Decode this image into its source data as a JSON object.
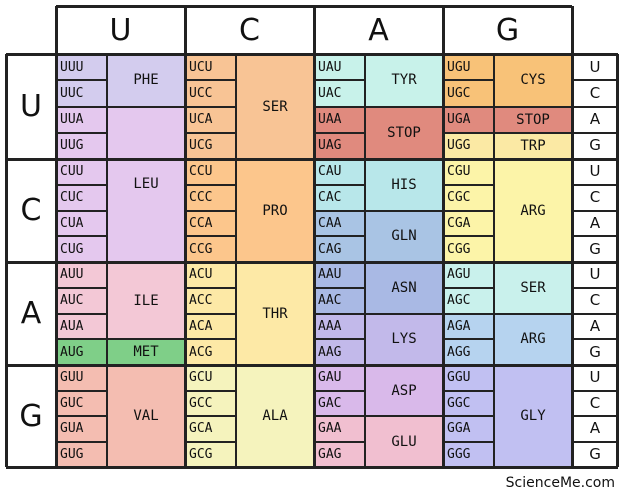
{
  "header": {
    "u": "U",
    "c": "C",
    "a": "A",
    "g": "G"
  },
  "rows": {
    "u": "U",
    "c": "C",
    "a": "A",
    "g": "G"
  },
  "third": [
    "U",
    "C",
    "A",
    "G"
  ],
  "codons": {
    "UUU": "UUU",
    "UUC": "UUC",
    "UUA": "UUA",
    "UUG": "UUG",
    "CUU": "CUU",
    "CUC": "CUC",
    "CUA": "CUA",
    "CUG": "CUG",
    "AUU": "AUU",
    "AUC": "AUC",
    "AUA": "AUA",
    "AUG": "AUG",
    "GUU": "GUU",
    "GUC": "GUC",
    "GUA": "GUA",
    "GUG": "GUG",
    "UCU": "UCU",
    "UCC": "UCC",
    "UCA": "UCA",
    "UCG": "UCG",
    "CCU": "CCU",
    "CCC": "CCC",
    "CCA": "CCA",
    "CCG": "CCG",
    "ACU": "ACU",
    "ACC": "ACC",
    "ACA": "ACA",
    "ACG": "ACG",
    "GCU": "GCU",
    "GCC": "GCC",
    "GCA": "GCA",
    "GCG": "GCG",
    "UAU": "UAU",
    "UAC": "UAC",
    "UAA": "UAA",
    "UAG": "UAG",
    "CAU": "CAU",
    "CAC": "CAC",
    "CAA": "CAA",
    "CAG": "CAG",
    "AAU": "AAU",
    "AAC": "AAC",
    "AAA": "AAA",
    "AAG": "AAG",
    "GAU": "GAU",
    "GAC": "GAC",
    "GAA": "GAA",
    "GAG": "GAG",
    "UGU": "UGU",
    "UGC": "UGC",
    "UGA": "UGA",
    "UGG": "UGG",
    "CGU": "CGU",
    "CGC": "CGC",
    "CGA": "CGA",
    "CGG": "CGG",
    "AGU": "AGU",
    "AGC": "AGC",
    "AGA": "AGA",
    "AGG": "AGG",
    "GGU": "GGU",
    "GGC": "GGC",
    "GGA": "GGA",
    "GGG": "GGG"
  },
  "amino": {
    "phe": "PHE",
    "leu": "LEU",
    "ile": "ILE",
    "met": "MET",
    "val": "VAL",
    "ser": "SER",
    "pro": "PRO",
    "thr": "THR",
    "ala": "ALA",
    "tyr": "TYR",
    "stop": "STOP",
    "his": "HIS",
    "gln": "GLN",
    "asn": "ASN",
    "lys": "LYS",
    "asp": "ASP",
    "glu": "GLU",
    "cys": "CYS",
    "trp": "TRP",
    "arg": "ARG",
    "ser2": "SER",
    "arg2": "ARG",
    "gly": "GLY"
  },
  "colors": {
    "phe": "#d3ccee",
    "leu": "#e4c8ee",
    "ile": "#f3c8d6",
    "met": "#7fcf88",
    "val": "#f4bdb1",
    "ser": "#f8c495",
    "pro": "#fcc68c",
    "thr": "#fde9a6",
    "ala": "#f5f3bd",
    "tyr": "#c8f2ea",
    "stop": "#e08a7e",
    "his": "#b8e7ea",
    "gln": "#a9c4e4",
    "asn": "#a9b9e4",
    "lys": "#c2b9ea",
    "asp": "#d9b9ea",
    "glu": "#f1bfd0",
    "cys": "#f8c278",
    "stop2": "#e08a7e",
    "trp": "#fbe9a4",
    "arg": "#fcf4a8",
    "ser2": "#c9f1ec",
    "arg2": "#b6d3ef",
    "gly": "#c1c0f2"
  },
  "credit": "ScienceMe.com"
}
